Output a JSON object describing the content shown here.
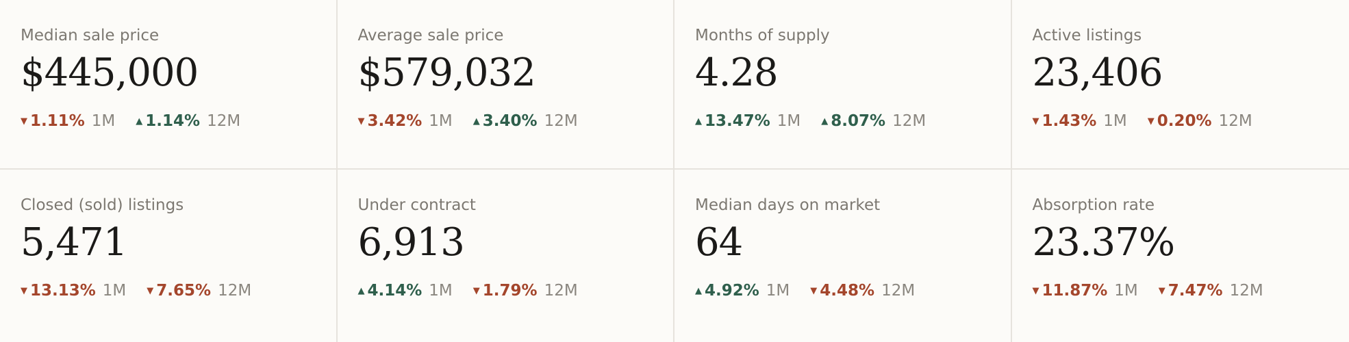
{
  "colors": {
    "up": "#2f5f4c",
    "down": "#a4462c",
    "label": "#7c7871",
    "value": "#1b1a18",
    "background": "#fcfbf8"
  },
  "cards": [
    {
      "label": "Median sale price",
      "value": "$445,000",
      "changes": [
        {
          "direction": "down",
          "arrow": "▼",
          "pct": "1.11%",
          "period": "1M"
        },
        {
          "direction": "up",
          "arrow": "▲",
          "pct": "1.14%",
          "period": "12M"
        }
      ]
    },
    {
      "label": "Average sale price",
      "value": "$579,032",
      "changes": [
        {
          "direction": "down",
          "arrow": "▼",
          "pct": "3.42%",
          "period": "1M"
        },
        {
          "direction": "up",
          "arrow": "▲",
          "pct": "3.40%",
          "period": "12M"
        }
      ]
    },
    {
      "label": "Months of supply",
      "value": "4.28",
      "changes": [
        {
          "direction": "up",
          "arrow": "▲",
          "pct": "13.47%",
          "period": "1M"
        },
        {
          "direction": "up",
          "arrow": "▲",
          "pct": "8.07%",
          "period": "12M"
        }
      ]
    },
    {
      "label": "Active listings",
      "value": "23,406",
      "changes": [
        {
          "direction": "down",
          "arrow": "▼",
          "pct": "1.43%",
          "period": "1M"
        },
        {
          "direction": "down",
          "arrow": "▼",
          "pct": "0.20%",
          "period": "12M"
        }
      ]
    },
    {
      "label": "Closed (sold) listings",
      "value": "5,471",
      "changes": [
        {
          "direction": "down",
          "arrow": "▼",
          "pct": "13.13%",
          "period": "1M"
        },
        {
          "direction": "down",
          "arrow": "▼",
          "pct": "7.65%",
          "period": "12M"
        }
      ]
    },
    {
      "label": "Under contract",
      "value": "6,913",
      "changes": [
        {
          "direction": "up",
          "arrow": "▲",
          "pct": "4.14%",
          "period": "1M"
        },
        {
          "direction": "down",
          "arrow": "▼",
          "pct": "1.79%",
          "period": "12M"
        }
      ]
    },
    {
      "label": "Median days on market",
      "value": "64",
      "changes": [
        {
          "direction": "up",
          "arrow": "▲",
          "pct": "4.92%",
          "period": "1M"
        },
        {
          "direction": "down",
          "arrow": "▼",
          "pct": "4.48%",
          "period": "12M"
        }
      ]
    },
    {
      "label": "Absorption rate",
      "value": "23.37%",
      "changes": [
        {
          "direction": "down",
          "arrow": "▼",
          "pct": "11.87%",
          "period": "1M"
        },
        {
          "direction": "down",
          "arrow": "▼",
          "pct": "7.47%",
          "period": "12M"
        }
      ]
    }
  ]
}
